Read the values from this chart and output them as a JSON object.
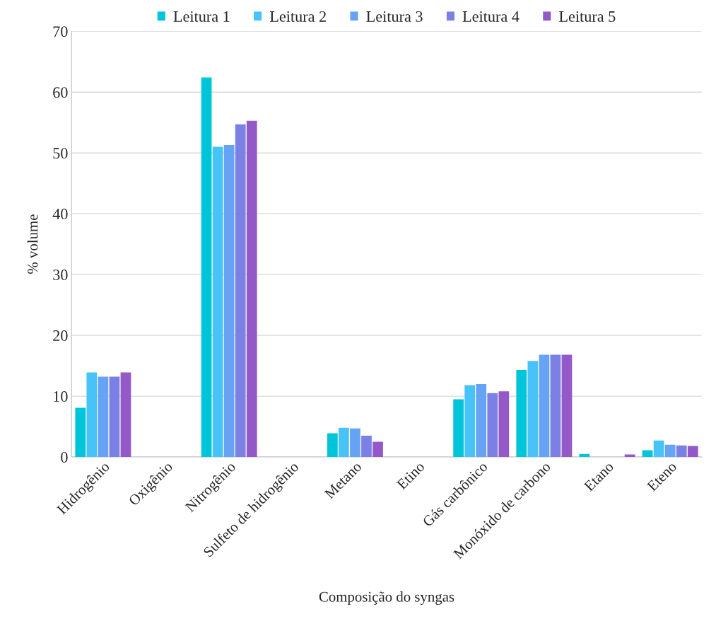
{
  "chart_data": {
    "type": "bar",
    "xlabel": "Composição do syngas",
    "ylabel": "% volume",
    "categories": [
      "Hidrogênio",
      "Oxigênio",
      "Nitrogênio",
      "Sulfeto de hidrogênio",
      "Metano",
      "Etino",
      "Gás carbônico",
      "Monóxido de carbono",
      "Etano",
      "Eteno"
    ],
    "series": [
      {
        "name": "Leitura 1",
        "color": "#00c5d9",
        "values": [
          8.1,
          null,
          62.4,
          null,
          3.9,
          null,
          9.5,
          14.3,
          0.5,
          1.1
        ]
      },
      {
        "name": "Leitura 2",
        "color": "#47c3f7",
        "values": [
          13.9,
          null,
          51.0,
          null,
          4.8,
          null,
          11.8,
          15.8,
          null,
          2.7
        ]
      },
      {
        "name": "Leitura 3",
        "color": "#67a3f5",
        "values": [
          13.2,
          null,
          51.3,
          null,
          4.7,
          null,
          12.0,
          16.8,
          null,
          2.0
        ]
      },
      {
        "name": "Leitura 4",
        "color": "#7b80e4",
        "values": [
          13.2,
          null,
          54.7,
          null,
          3.5,
          null,
          10.5,
          16.8,
          null,
          1.9
        ]
      },
      {
        "name": "Leitura 5",
        "color": "#9459c9",
        "values": [
          13.9,
          null,
          55.3,
          null,
          2.5,
          null,
          10.8,
          16.8,
          0.4,
          1.8
        ]
      }
    ],
    "ylim": [
      0,
      70
    ],
    "yticks": [
      0,
      10,
      20,
      30,
      40,
      50,
      60,
      70
    ],
    "grid": "y",
    "legend": "top"
  }
}
